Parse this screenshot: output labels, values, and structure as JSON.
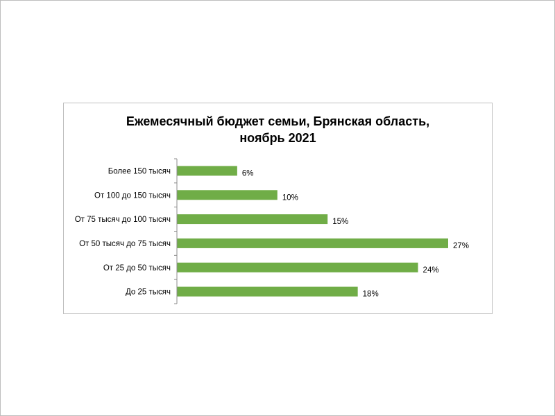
{
  "colors": {
    "bar": "#70ad47",
    "axis": "#8c8c8c",
    "frame": "#bfbfbf"
  },
  "chart_data": {
    "type": "bar",
    "orientation": "horizontal",
    "title_lines": [
      "Ежемесячный бюджет семьи, Брянская область,",
      "ноябрь 2021"
    ],
    "categories": [
      "Более 150 тысяч",
      "От 100 до 150 тысяч",
      "От 75 тысяч до 100 тысяч",
      "От 50 тысяч до 75 тысяч",
      "От 25 до 50 тысяч",
      "До 25 тысяч"
    ],
    "values": [
      6,
      10,
      15,
      27,
      24,
      18
    ],
    "value_labels": [
      "6%",
      "10%",
      "15%",
      "27%",
      "24%",
      "18%"
    ],
    "unit": "%",
    "xlim": [
      0,
      27
    ],
    "grid": false,
    "legend": "none"
  }
}
